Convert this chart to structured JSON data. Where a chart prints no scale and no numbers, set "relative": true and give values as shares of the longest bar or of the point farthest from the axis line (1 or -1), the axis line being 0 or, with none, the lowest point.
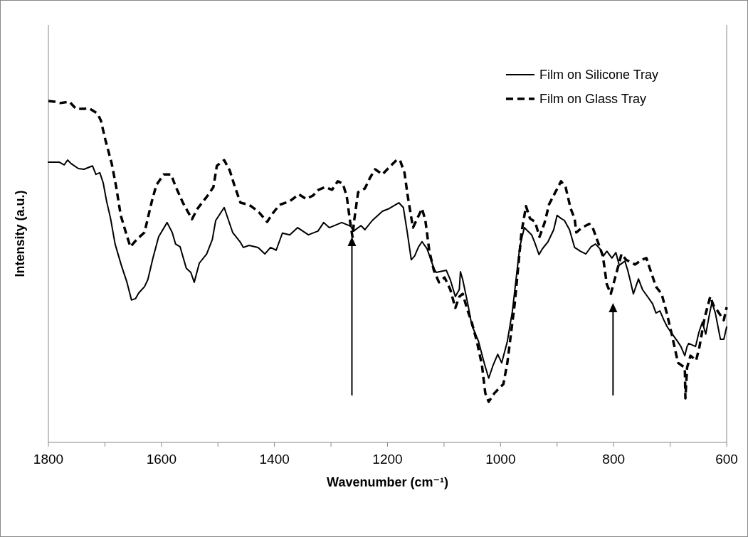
{
  "chart_data": {
    "type": "line",
    "relative": true,
    "xlabel": "Wavenumber (cm⁻¹)",
    "ylabel": "Intensity (a.u.)",
    "xlim": [
      1800,
      600
    ],
    "xticks": [
      1800,
      {
        "value": 1700,
        "label": null
      },
      1600,
      {
        "value": 1500,
        "label": null
      },
      1400,
      {
        "value": 1300,
        "label": null
      },
      1200,
      {
        "value": 1100,
        "label": null
      },
      1000,
      {
        "value": 900,
        "label": null
      },
      800,
      {
        "value": 700,
        "label": null
      },
      600
    ],
    "legend": "top right",
    "grid": false,
    "series": [
      {
        "name": "Film on Silicone Tray",
        "color": "#000000",
        "line_style": "solid",
        "x": [
          1800,
          1781,
          1772,
          1766,
          1760,
          1747,
          1737,
          1722,
          1716,
          1709,
          1703,
          1697,
          1690,
          1682,
          1671,
          1661,
          1653,
          1646,
          1640,
          1630,
          1624,
          1615,
          1605,
          1590,
          1581,
          1575,
          1567,
          1556,
          1548,
          1542,
          1533,
          1520,
          1510,
          1504,
          1489,
          1474,
          1461,
          1455,
          1445,
          1429,
          1417,
          1407,
          1397,
          1386,
          1373,
          1359,
          1340,
          1323,
          1313,
          1303,
          1281,
          1265,
          1260,
          1247,
          1240,
          1227,
          1209,
          1197,
          1180,
          1172,
          1165,
          1158,
          1152,
          1145,
          1139,
          1130,
          1118,
          1114,
          1096,
          1089,
          1080,
          1073,
          1071,
          1067,
          1058,
          1051,
          1039,
          1029,
          1021,
          1013,
          1005,
          998,
          988,
          979,
          966,
          958,
          945,
          939,
          932,
          926,
          916,
          906,
          900,
          893,
          887,
          878,
          869,
          859,
          849,
          840,
          832,
          824,
          818,
          812,
          803,
          796,
          790,
          780,
          775,
          771,
          765,
          756,
          749,
          740,
          731,
          725,
          718,
          711,
          705,
          696,
          687,
          681,
          674,
          670,
          667,
          655,
          649,
          643,
          637,
          630,
          626,
          620,
          611,
          605,
          600
        ],
        "values": [
          0.821,
          0.821,
          0.813,
          0.827,
          0.817,
          0.802,
          0.8,
          0.81,
          0.785,
          0.79,
          0.76,
          0.706,
          0.656,
          0.581,
          0.519,
          0.469,
          0.417,
          0.421,
          0.438,
          0.456,
          0.477,
          0.54,
          0.602,
          0.644,
          0.615,
          0.581,
          0.573,
          0.51,
          0.498,
          0.469,
          0.525,
          0.552,
          0.594,
          0.65,
          0.688,
          0.615,
          0.588,
          0.571,
          0.577,
          0.571,
          0.552,
          0.571,
          0.563,
          0.613,
          0.608,
          0.629,
          0.608,
          0.619,
          0.644,
          0.629,
          0.644,
          0.633,
          0.619,
          0.635,
          0.623,
          0.65,
          0.677,
          0.685,
          0.702,
          0.688,
          0.615,
          0.535,
          0.546,
          0.573,
          0.588,
          0.567,
          0.51,
          0.498,
          0.504,
          0.477,
          0.427,
          0.448,
          0.5,
          0.477,
          0.406,
          0.344,
          0.296,
          0.233,
          0.188,
          0.227,
          0.258,
          0.233,
          0.296,
          0.385,
          0.573,
          0.629,
          0.608,
          0.583,
          0.55,
          0.567,
          0.588,
          0.623,
          0.665,
          0.656,
          0.65,
          0.623,
          0.571,
          0.56,
          0.552,
          0.573,
          0.581,
          0.567,
          0.546,
          0.56,
          0.54,
          0.556,
          0.519,
          0.531,
          0.504,
          0.477,
          0.435,
          0.479,
          0.448,
          0.427,
          0.406,
          0.379,
          0.385,
          0.358,
          0.338,
          0.317,
          0.296,
          0.281,
          0.254,
          0.281,
          0.29,
          0.281,
          0.323,
          0.352,
          0.317,
          0.379,
          0.41,
          0.379,
          0.302,
          0.302,
          0.338
        ]
      },
      {
        "name": "Film on Glass Tray",
        "color": "#000000",
        "line_style": "dashed",
        "x": [
          1800,
          1789,
          1779,
          1763,
          1751,
          1737,
          1728,
          1713,
          1707,
          1699,
          1688,
          1680,
          1672,
          1663,
          1655,
          1644,
          1630,
          1617,
          1609,
          1596,
          1583,
          1575,
          1562,
          1546,
          1536,
          1520,
          1508,
          1502,
          1489,
          1479,
          1470,
          1460,
          1445,
          1429,
          1413,
          1403,
          1391,
          1373,
          1357,
          1344,
          1332,
          1322,
          1310,
          1298,
          1288,
          1279,
          1272,
          1266,
          1262,
          1259,
          1252,
          1240,
          1231,
          1222,
          1209,
          1197,
          1184,
          1178,
          1170,
          1164,
          1155,
          1149,
          1139,
          1133,
          1126,
          1118,
          1109,
          1099,
          1089,
          1080,
          1073,
          1067,
          1058,
          1051,
          1042,
          1033,
          1027,
          1021,
          1011,
          995,
          988,
          975,
          963,
          955,
          948,
          939,
          931,
          922,
          914,
          903,
          893,
          885,
          876,
          869,
          866,
          856,
          843,
          837,
          828,
          819,
          812,
          805,
          796,
          786,
          778,
          762,
          750,
          742,
          736,
          725,
          715,
          706,
          698,
          686,
          674,
          673,
          670,
          664,
          654,
          648,
          639,
          629,
          623,
          616,
          605,
          600
        ],
        "values": [
          1,
          0.998,
          0.994,
          0.998,
          0.977,
          0.977,
          0.979,
          0.963,
          0.942,
          0.885,
          0.817,
          0.748,
          0.665,
          0.615,
          0.573,
          0.594,
          0.615,
          0.706,
          0.754,
          0.785,
          0.785,
          0.75,
          0.702,
          0.654,
          0.685,
          0.719,
          0.748,
          0.81,
          0.827,
          0.796,
          0.748,
          0.702,
          0.696,
          0.677,
          0.646,
          0.671,
          0.696,
          0.706,
          0.727,
          0.713,
          0.723,
          0.74,
          0.748,
          0.74,
          0.765,
          0.758,
          0.719,
          0.644,
          0.602,
          0.65,
          0.733,
          0.744,
          0.775,
          0.8,
          0.785,
          0.806,
          0.827,
          0.827,
          0.79,
          0.719,
          0.629,
          0.65,
          0.685,
          0.65,
          0.56,
          0.504,
          0.469,
          0.483,
          0.448,
          0.394,
          0.427,
          0.435,
          0.385,
          0.352,
          0.296,
          0.227,
          0.144,
          0.119,
          0.144,
          0.171,
          0.233,
          0.406,
          0.615,
          0.692,
          0.656,
          0.646,
          0.602,
          0.644,
          0.698,
          0.733,
          0.765,
          0.748,
          0.685,
          0.656,
          0.615,
          0.629,
          0.64,
          0.629,
          0.588,
          0.546,
          0.463,
          0.435,
          0.49,
          0.552,
          0.535,
          0.521,
          0.535,
          0.54,
          0.51,
          0.456,
          0.435,
          0.379,
          0.323,
          0.233,
          0.219,
          0.129,
          0.219,
          0.254,
          0.24,
          0.281,
          0.365,
          0.427,
          0.4,
          0.385,
          0.358,
          0.396
        ]
      }
    ]
  }
}
